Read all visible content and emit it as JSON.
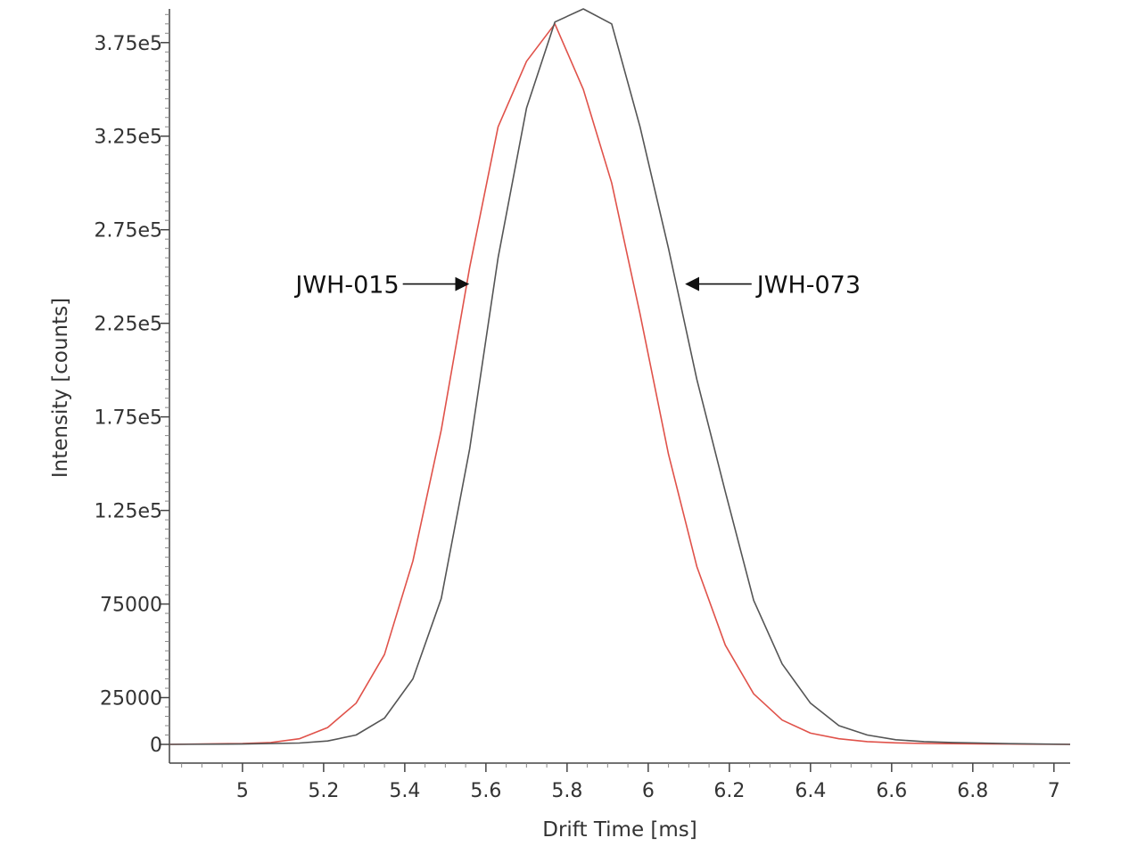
{
  "chart_data": {
    "type": "line",
    "xlabel": "Drift Time [ms]",
    "ylabel": "Intensity [counts]",
    "xlim": [
      4.82,
      7.04
    ],
    "ylim": [
      -10000,
      393000
    ],
    "x_ticks": [
      5,
      5.2,
      5.4,
      5.6,
      5.8,
      6,
      6.2,
      6.4,
      6.6,
      6.8,
      7
    ],
    "x_tick_labels": [
      "5",
      "5.2",
      "5.4",
      "5.6",
      "5.8",
      "6",
      "6.2",
      "6.4",
      "6.6",
      "6.8",
      "7"
    ],
    "y_ticks": [
      0,
      25000,
      75000,
      125000,
      175000,
      225000,
      275000,
      325000,
      375000
    ],
    "y_tick_labels": [
      "0",
      "25000",
      "75000",
      "1.25e5",
      "1.75e5",
      "2.25e5",
      "2.75e5",
      "3.25e5",
      "3.75e5"
    ],
    "grid": false,
    "series": [
      {
        "name": "JWH-015",
        "color": "#e0524a",
        "x": [
          4.82,
          5.0,
          5.07,
          5.14,
          5.21,
          5.28,
          5.35,
          5.42,
          5.49,
          5.56,
          5.63,
          5.7,
          5.77,
          5.84,
          5.91,
          5.98,
          6.05,
          6.12,
          6.19,
          6.26,
          6.33,
          6.4,
          6.47,
          6.54,
          6.61,
          6.68,
          6.75,
          6.82,
          6.89,
          6.96,
          7.04
        ],
        "values": [
          0,
          500,
          1000,
          3000,
          9000,
          22000,
          48000,
          98000,
          168000,
          255000,
          330000,
          365000,
          385000,
          350000,
          300000,
          230000,
          155000,
          95000,
          53000,
          27000,
          13000,
          6000,
          3000,
          1500,
          800,
          500,
          400,
          300,
          200,
          100,
          0
        ]
      },
      {
        "name": "JWH-073",
        "color": "#555555",
        "x": [
          4.82,
          5.0,
          5.14,
          5.21,
          5.28,
          5.35,
          5.42,
          5.49,
          5.56,
          5.63,
          5.7,
          5.77,
          5.84,
          5.91,
          5.98,
          6.05,
          6.12,
          6.19,
          6.26,
          6.33,
          6.4,
          6.47,
          6.54,
          6.61,
          6.68,
          6.75,
          6.82,
          6.89,
          6.96,
          7.04
        ],
        "values": [
          0,
          200,
          700,
          1800,
          5000,
          14000,
          35000,
          78000,
          158000,
          260000,
          340000,
          386000,
          393000,
          385000,
          330000,
          265000,
          195000,
          135000,
          77000,
          43000,
          22000,
          10000,
          5000,
          2500,
          1500,
          1000,
          700,
          400,
          200,
          0
        ]
      }
    ],
    "annotations": [
      {
        "text": "JWH-015",
        "series": 0,
        "x": 5.56,
        "y": 246000,
        "direction": "right"
      },
      {
        "text": "JWH-073",
        "series": 1,
        "x": 6.09,
        "y": 246000,
        "direction": "left"
      }
    ]
  }
}
